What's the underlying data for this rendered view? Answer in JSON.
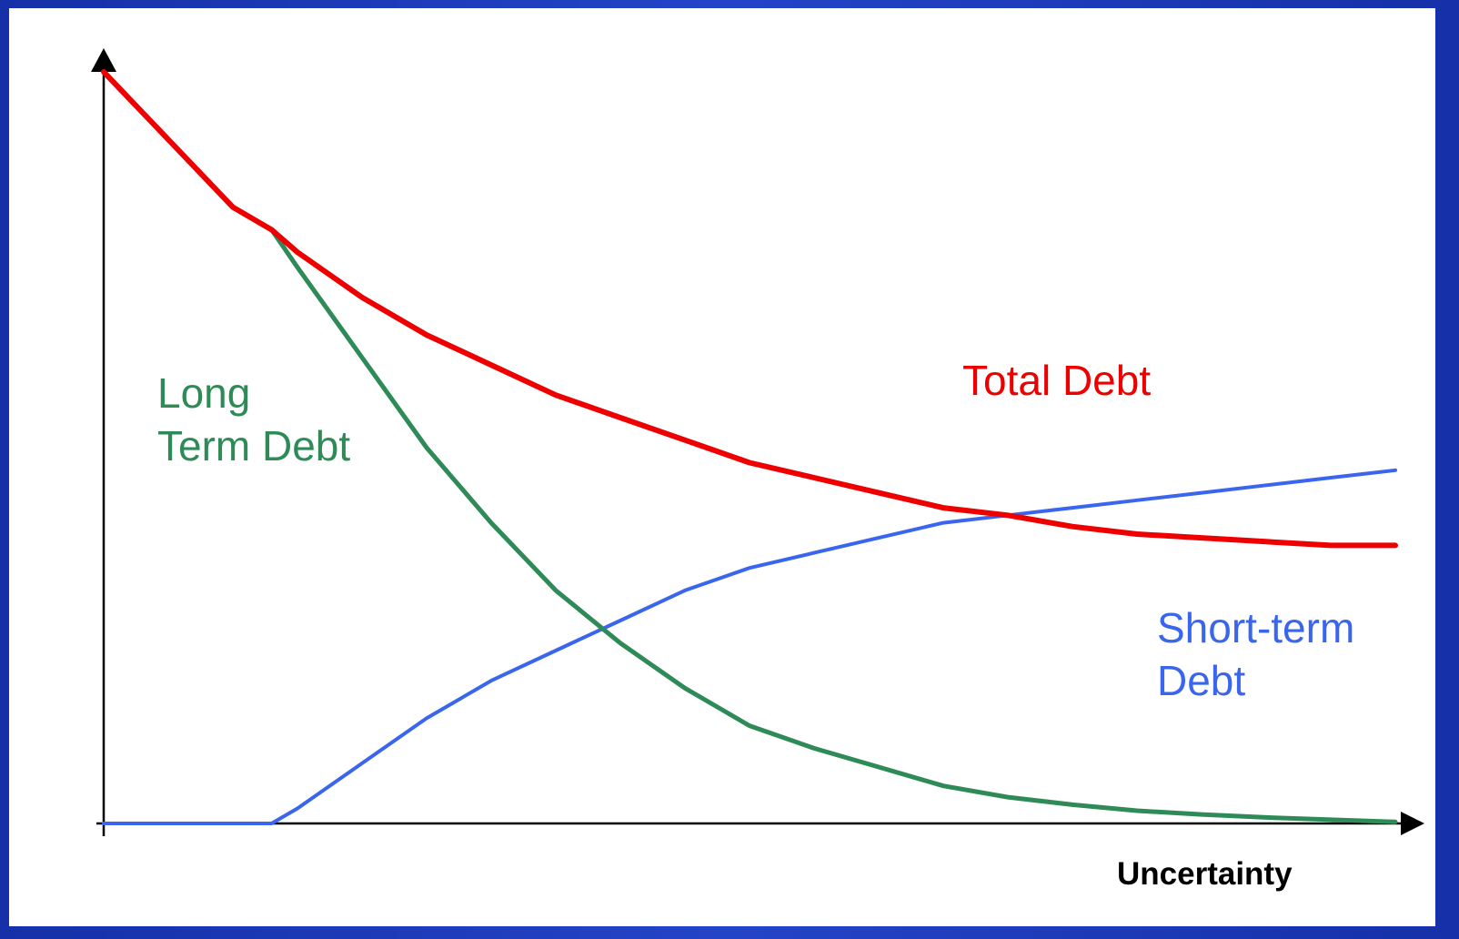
{
  "chart_data": {
    "type": "line",
    "xlabel": "Uncertainty",
    "ylabel": "",
    "x": [
      0,
      0.05,
      0.1,
      0.13,
      0.15,
      0.2,
      0.25,
      0.3,
      0.35,
      0.4,
      0.45,
      0.5,
      0.55,
      0.6,
      0.65,
      0.7,
      0.75,
      0.8,
      0.85,
      0.9,
      0.95,
      1.0
    ],
    "xlim": [
      0,
      1
    ],
    "ylim": [
      0,
      1
    ],
    "grid": false,
    "series": [
      {
        "name": "Total Debt",
        "color": "#ee0000",
        "values": [
          1.0,
          0.91,
          0.82,
          0.79,
          0.76,
          0.7,
          0.65,
          0.61,
          0.57,
          0.54,
          0.51,
          0.48,
          0.46,
          0.44,
          0.42,
          0.41,
          0.395,
          0.385,
          0.38,
          0.375,
          0.37,
          0.37
        ]
      },
      {
        "name": "Long Term Debt",
        "color": "#2e8b57",
        "values": [
          1.0,
          0.91,
          0.82,
          0.79,
          0.74,
          0.62,
          0.5,
          0.4,
          0.31,
          0.24,
          0.18,
          0.13,
          0.1,
          0.075,
          0.05,
          0.035,
          0.025,
          0.017,
          0.012,
          0.008,
          0.005,
          0.002
        ]
      },
      {
        "name": "Short-term Debt",
        "color": "#3a66ee",
        "values": [
          0,
          0,
          0,
          0,
          0.02,
          0.08,
          0.14,
          0.19,
          0.23,
          0.27,
          0.31,
          0.34,
          0.36,
          0.38,
          0.4,
          0.41,
          0.42,
          0.43,
          0.44,
          0.45,
          0.46,
          0.47
        ]
      }
    ],
    "annotations": [
      {
        "text_lines": [
          "Long",
          "Term Debt"
        ],
        "color": "#2e8b57"
      },
      {
        "text_lines": [
          "Total Debt"
        ],
        "color": "#ee0000"
      },
      {
        "text_lines": [
          "Short-term",
          "Debt"
        ],
        "color": "#3a66ee"
      }
    ]
  }
}
